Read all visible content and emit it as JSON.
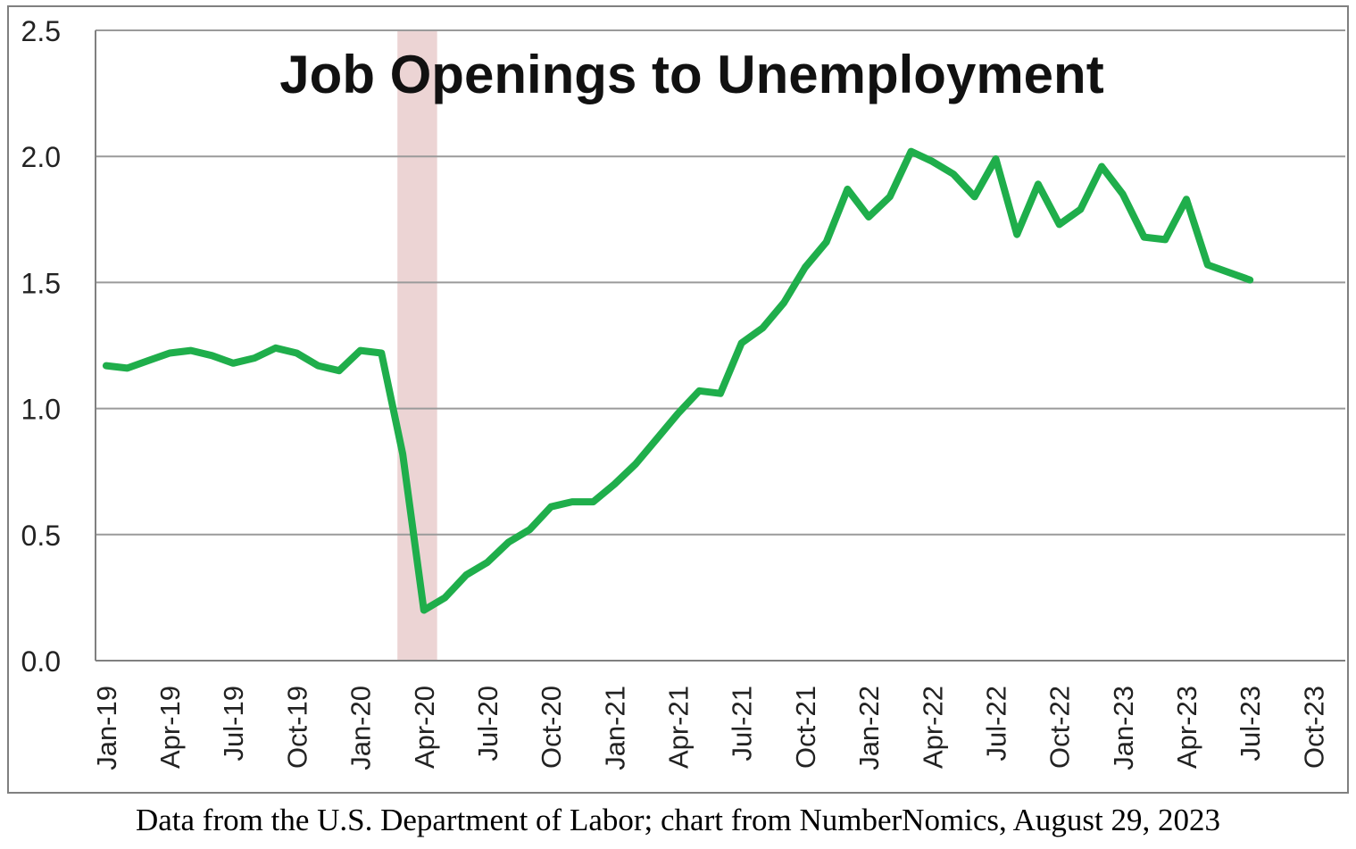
{
  "caption": "Data from the U.S. Department of Labor; chart from NumberNomics, August 29, 2023",
  "colors": {
    "line": "#1fae4b",
    "recession_band": "#ecd4d4",
    "grid": "#9a9a9a",
    "axis": "#808080",
    "text": "#222222"
  },
  "chart_data": {
    "type": "line",
    "title": "Job Openings to Unemployment",
    "xlabel": "",
    "ylabel": "",
    "ylim": [
      0,
      2.5
    ],
    "y_ticks": [
      "0.0",
      "0.5",
      "1.0",
      "1.5",
      "2.0",
      "2.5"
    ],
    "x_tick_labels": [
      "Jan-19",
      "Apr-19",
      "Jul-19",
      "Oct-19",
      "Jan-20",
      "Apr-20",
      "Jul-20",
      "Oct-20",
      "Jan-21",
      "Apr-21",
      "Jul-21",
      "Oct-21",
      "Jan-22",
      "Apr-22",
      "Jul-22",
      "Oct-22",
      "Jan-23",
      "Apr-23",
      "Jul-23",
      "Oct-23"
    ],
    "grid": true,
    "legend": "none",
    "shaded_period": [
      "Mar-20",
      "Apr-20"
    ],
    "series": [
      {
        "x": [
          "Jan-19",
          "Feb-19",
          "Mar-19",
          "Apr-19",
          "May-19",
          "Jun-19",
          "Jul-19",
          "Aug-19",
          "Sep-19",
          "Oct-19",
          "Nov-19",
          "Dec-19",
          "Jan-20",
          "Feb-20",
          "Mar-20",
          "Apr-20",
          "May-20",
          "Jun-20",
          "Jul-20",
          "Aug-20",
          "Sep-20",
          "Oct-20",
          "Nov-20",
          "Dec-20",
          "Jan-21",
          "Feb-21",
          "Mar-21",
          "Apr-21",
          "May-21",
          "Jun-21",
          "Jul-21",
          "Aug-21",
          "Sep-21",
          "Oct-21",
          "Nov-21",
          "Dec-21",
          "Jan-22",
          "Feb-22",
          "Mar-22",
          "Apr-22",
          "May-22",
          "Jun-22",
          "Jul-22",
          "Aug-22",
          "Sep-22",
          "Oct-22",
          "Nov-22",
          "Dec-22",
          "Jan-23",
          "Feb-23",
          "Mar-23",
          "Apr-23",
          "May-23",
          "Jun-23",
          "Jul-23"
        ],
        "values": [
          1.17,
          1.16,
          1.19,
          1.22,
          1.23,
          1.21,
          1.18,
          1.2,
          1.24,
          1.22,
          1.17,
          1.15,
          1.23,
          1.22,
          0.82,
          0.2,
          0.25,
          0.34,
          0.39,
          0.47,
          0.52,
          0.61,
          0.63,
          0.63,
          0.7,
          0.78,
          0.88,
          0.98,
          1.07,
          1.06,
          1.26,
          1.32,
          1.42,
          1.56,
          1.66,
          1.87,
          1.76,
          1.84,
          2.02,
          1.98,
          1.93,
          1.84,
          1.99,
          1.69,
          1.89,
          1.73,
          1.79,
          1.96,
          1.85,
          1.68,
          1.67,
          1.83,
          1.57,
          1.54,
          1.51
        ]
      }
    ]
  }
}
